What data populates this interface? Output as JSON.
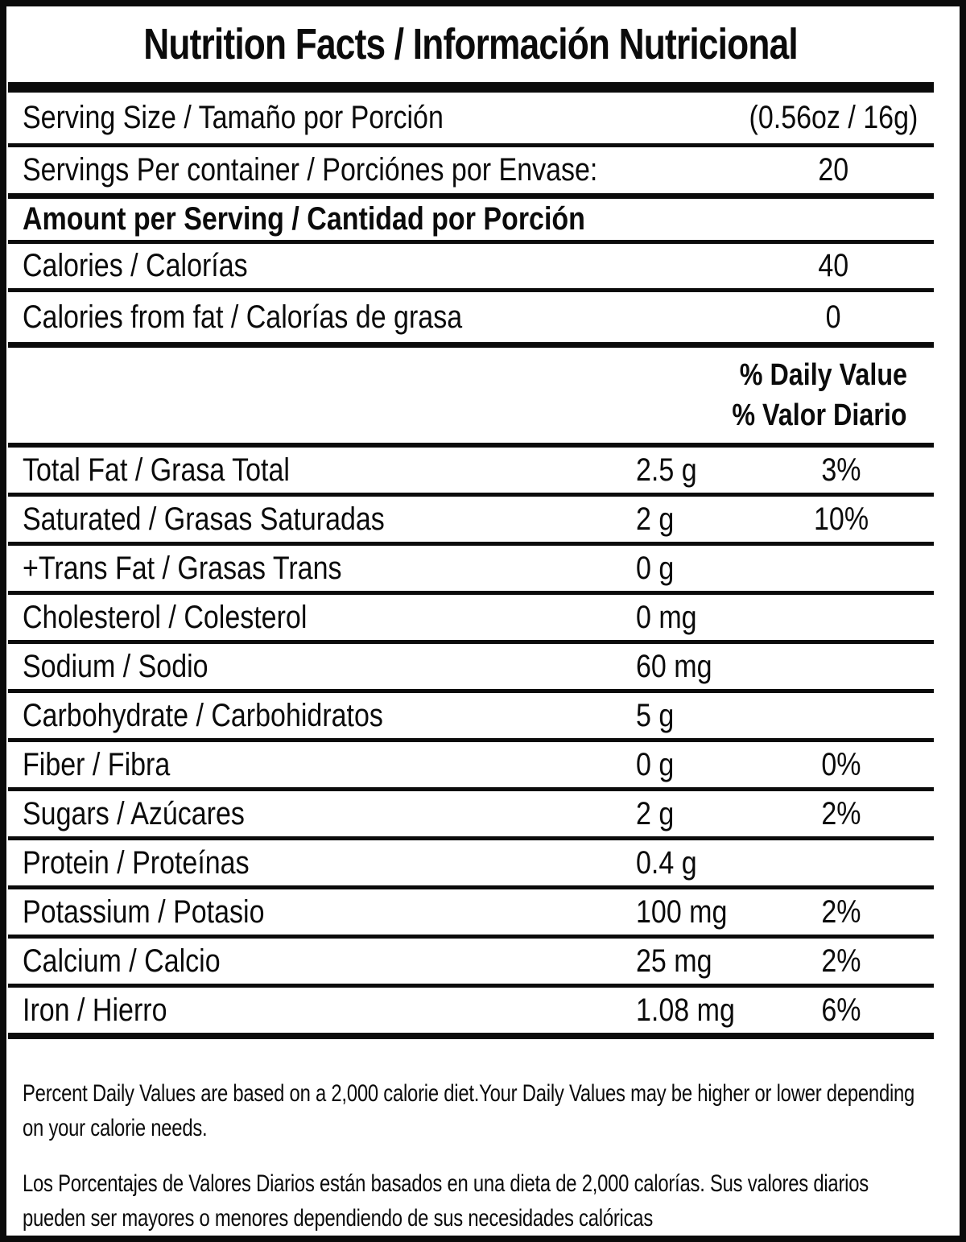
{
  "label": {
    "title": "Nutrition Facts / Información Nutricional",
    "serving_size": {
      "name": "Serving Size / Tamaño por Porción",
      "value": "(0.56oz / 16g)"
    },
    "servings_per_container": {
      "name": "Servings Per container / Porciónes por Envase:",
      "value": "20"
    },
    "amount_heading": "Amount per Serving / Cantidad por Porción",
    "calories": {
      "name": "Calories / Calorías",
      "value": "40"
    },
    "calories_from_fat": {
      "name": "Calories from fat / Calorías de grasa",
      "value": "0"
    },
    "daily_value_header": {
      "line1": "% Daily Value",
      "line2": "% Valor Diario"
    },
    "nutrient_rows": [
      {
        "name": "Total Fat / Grasa Total",
        "amount": "2.5 g",
        "dv": "3%"
      },
      {
        "name": "Saturated / Grasas Saturadas",
        "amount": "2 g",
        "dv": "10%"
      },
      {
        "name": "+Trans Fat / Grasas Trans",
        "amount": "0 g",
        "dv": ""
      },
      {
        "name": "Cholesterol / Colesterol",
        "amount": "0 mg",
        "dv": ""
      },
      {
        "name": "Sodium / Sodio",
        "amount": "60 mg",
        "dv": ""
      },
      {
        "name": "Carbohydrate / Carbohidratos",
        "amount": "5 g",
        "dv": ""
      },
      {
        "name": "Fiber / Fibra",
        "amount": "0 g",
        "dv": "0%"
      },
      {
        "name": "Sugars / Azúcares",
        "amount": "2 g",
        "dv": "2%"
      },
      {
        "name": "Protein / Proteínas",
        "amount": "0.4 g",
        "dv": ""
      },
      {
        "name": "Potassium / Potasio",
        "amount": "100 mg",
        "dv": "2%"
      },
      {
        "name": "Calcium / Calcio",
        "amount": "25 mg",
        "dv": "2%"
      },
      {
        "name": "Iron / Hierro",
        "amount": "1.08 mg",
        "dv": "6%"
      }
    ],
    "footnotes": {
      "en": "Percent Daily Values are based on a 2,000 calorie diet.Your Daily Values may be higher or lower depending on your calorie needs.",
      "es": "Los Porcentajes de Valores Diarios están basados en una dieta de 2,000 calorías. Sus valores diarios pueden ser mayores o menores dependiendo de sus necesidades calóricas"
    },
    "colors": {
      "text": "#0b0b0b",
      "background": "#ffffff"
    }
  }
}
